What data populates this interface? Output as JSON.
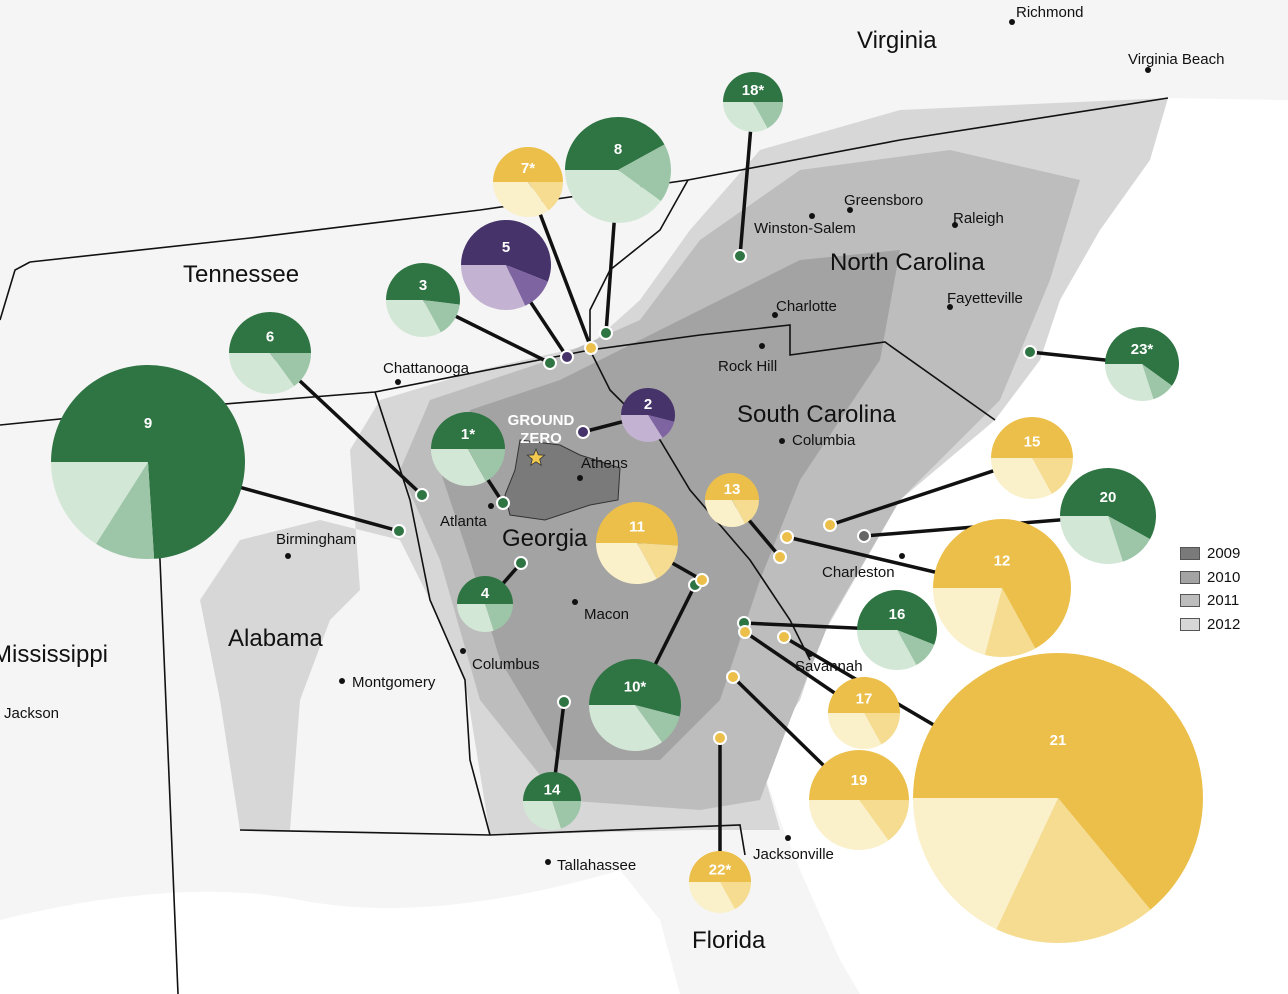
{
  "map": {
    "states": [
      "Virginia",
      "Tennessee",
      "North Carolina",
      "South Carolina",
      "Georgia",
      "Alabama",
      "Mississippi",
      "Florida"
    ],
    "cities": [
      "Richmond",
      "Virginia Beach",
      "Greensboro",
      "Winston-Salem",
      "Raleigh",
      "Charlotte",
      "Fayetteville",
      "Rock Hill",
      "Columbia",
      "Chattanooga",
      "Athens",
      "Atlanta",
      "Birmingham",
      "Macon",
      "Columbus",
      "Montgomery",
      "Jackson",
      "Savannah",
      "Charleston",
      "Tallahassee",
      "Jacksonville"
    ],
    "ground_zero": [
      "GROUND",
      "ZERO"
    ],
    "colors": {
      "background": "#f5f5f5",
      "border": "#111111",
      "region_2009": "#7a7a7a",
      "region_2010": "#a3a3a3",
      "region_2011": "#bdbdbd",
      "region_2012": "#d7d7d7",
      "ground_zero_star": "#f2c94c"
    }
  },
  "legend": {
    "items": [
      {
        "label": "2009",
        "color": "#7a7a7a"
      },
      {
        "label": "2010",
        "color": "#a3a3a3"
      },
      {
        "label": "2011",
        "color": "#bdbdbd"
      },
      {
        "label": "2012",
        "color": "#d7d7d7"
      }
    ]
  },
  "palettes": {
    "green": [
      "#2f7443",
      "#9cc6a7",
      "#d3e7d6"
    ],
    "purple": [
      "#45336a",
      "#7f64a2",
      "#c3b2d1"
    ],
    "yellow": [
      "#ecbf4a",
      "#f5dc90",
      "#faf0c9"
    ],
    "grey": [
      "#666666"
    ]
  },
  "chart_data": {
    "type": "pie",
    "markers": [
      {
        "label": "1*",
        "palette": "green",
        "fractions": [
          0.5,
          0.17,
          0.33
        ]
      },
      {
        "label": "2",
        "palette": "purple",
        "fractions": [
          0.54,
          0.12,
          0.34
        ]
      },
      {
        "label": "3",
        "palette": "green",
        "fractions": [
          0.52,
          0.15,
          0.33
        ]
      },
      {
        "label": "4",
        "palette": "green",
        "fractions": [
          0.5,
          0.2,
          0.3
        ]
      },
      {
        "label": "5",
        "palette": "purple",
        "fractions": [
          0.56,
          0.12,
          0.32
        ]
      },
      {
        "label": "6",
        "palette": "green",
        "fractions": [
          0.5,
          0.15,
          0.35
        ]
      },
      {
        "label": "7*",
        "palette": "yellow",
        "fractions": [
          0.5,
          0.15,
          0.35
        ]
      },
      {
        "label": "8",
        "palette": "green",
        "fractions": [
          0.42,
          0.18,
          0.4
        ]
      },
      {
        "label": "9",
        "palette": "green",
        "fractions": [
          0.74,
          0.1,
          0.16
        ]
      },
      {
        "label": "10*",
        "palette": "green",
        "fractions": [
          0.54,
          0.11,
          0.35
        ]
      },
      {
        "label": "11",
        "palette": "yellow",
        "fractions": [
          0.51,
          0.16,
          0.33
        ]
      },
      {
        "label": "12",
        "palette": "yellow",
        "fractions": [
          0.67,
          0.12,
          0.21
        ]
      },
      {
        "label": "13",
        "palette": "yellow",
        "fractions": [
          0.5,
          0.17,
          0.33
        ]
      },
      {
        "label": "14",
        "palette": "green",
        "fractions": [
          0.5,
          0.2,
          0.3
        ]
      },
      {
        "label": "15",
        "palette": "yellow",
        "fractions": [
          0.5,
          0.17,
          0.33
        ]
      },
      {
        "label": "16",
        "palette": "green",
        "fractions": [
          0.56,
          0.11,
          0.33
        ]
      },
      {
        "label": "17",
        "palette": "yellow",
        "fractions": [
          0.5,
          0.17,
          0.33
        ]
      },
      {
        "label": "18*",
        "palette": "green",
        "fractions": [
          0.5,
          0.17,
          0.33
        ]
      },
      {
        "label": "19",
        "palette": "yellow",
        "fractions": [
          0.5,
          0.15,
          0.35
        ]
      },
      {
        "label": "20",
        "palette": "green",
        "fractions": [
          0.58,
          0.12,
          0.3
        ]
      },
      {
        "label": "21",
        "palette": "yellow",
        "fractions": [
          0.64,
          0.18,
          0.18
        ]
      },
      {
        "label": "22*",
        "palette": "yellow",
        "fractions": [
          0.5,
          0.17,
          0.33
        ]
      },
      {
        "label": "23*",
        "palette": "green",
        "fractions": [
          0.6,
          0.1,
          0.3
        ]
      }
    ]
  }
}
